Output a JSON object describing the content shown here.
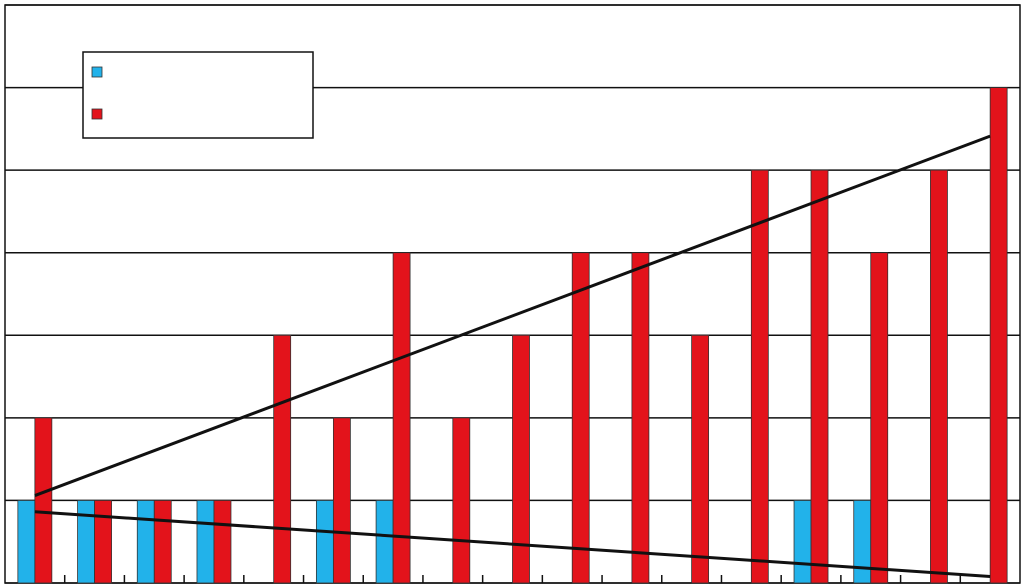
{
  "chart_data": {
    "type": "bar",
    "categories": [
      null,
      null,
      null,
      null,
      null,
      null,
      null,
      null,
      null,
      null,
      null,
      null,
      null,
      null,
      null,
      null,
      null
    ],
    "series": [
      {
        "color": "#22b2ea",
        "values": [
          1,
          1,
          1,
          1,
          0,
          1,
          1,
          0,
          0,
          0,
          0,
          0,
          0,
          1,
          1,
          0,
          0
        ]
      },
      {
        "color": "#e3131b",
        "values": [
          2,
          1,
          1,
          1,
          3,
          2,
          4,
          2,
          3,
          4,
          4,
          3,
          5,
          5,
          4,
          5,
          6
        ]
      }
    ],
    "ylim": [
      0,
      7
    ],
    "yticks": [
      0,
      1,
      2,
      3,
      4,
      5,
      6,
      7
    ],
    "grid": true,
    "trendline": true,
    "legend": "upper left"
  }
}
